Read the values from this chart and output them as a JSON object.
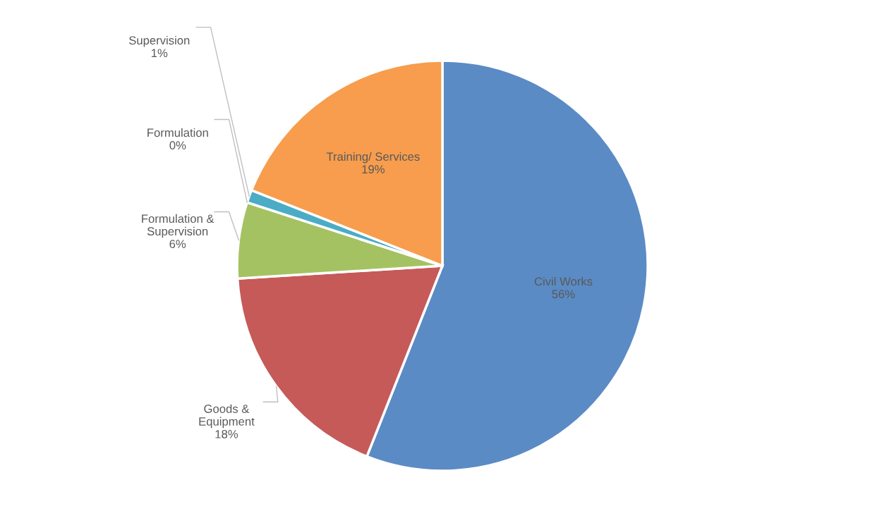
{
  "chart_data": {
    "type": "pie",
    "categories": [
      "Civil Works",
      "Goods & Equipment",
      "Formulation & Supervision",
      "Formulation",
      "Supervision",
      "Training/ Services"
    ],
    "values": [
      56,
      18,
      6,
      0,
      1,
      19
    ],
    "colors": [
      "#5b8bc5",
      "#c55a58",
      "#a5c262",
      "#8064a2",
      "#4bacc6",
      "#f79d4d"
    ],
    "value_labels": [
      "56%",
      "18%",
      "6%",
      "0%",
      "1%",
      "19%"
    ],
    "legend": false
  }
}
